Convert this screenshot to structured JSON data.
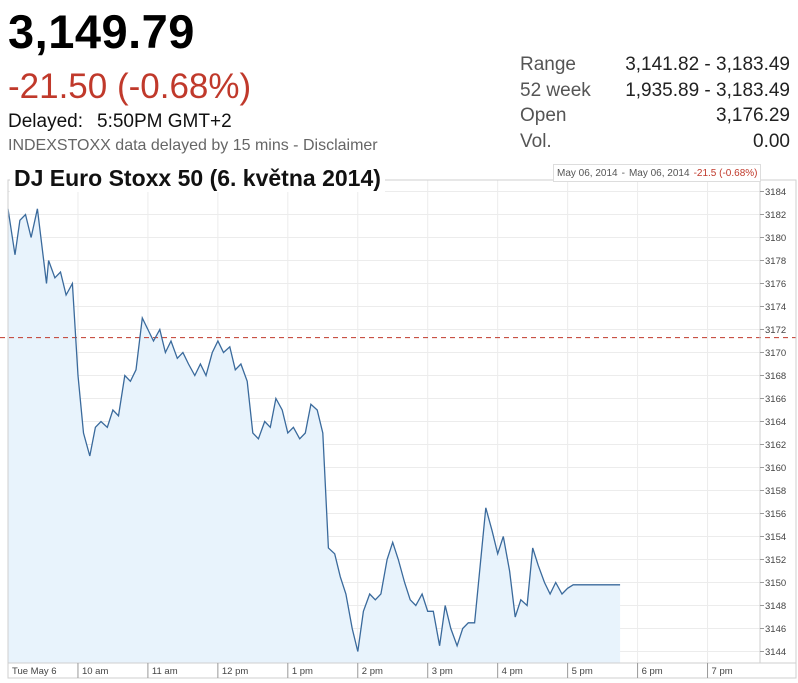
{
  "quote": {
    "price": "3,149.79",
    "change": "-21.50 (-0.68%)",
    "delayed_label": "Delayed:",
    "delayed_time": "5:50PM GMT+2",
    "disclaimer_prefix": "INDEXSTOXX data delayed by 15 mins - ",
    "disclaimer_link": "Disclaimer"
  },
  "stats": [
    {
      "label": "Range",
      "value": "3,141.82 - 3,183.49"
    },
    {
      "label": "52 week",
      "value": "1,935.89 - 3,183.49"
    },
    {
      "label": "Open",
      "value": "3,176.29"
    },
    {
      "label": "Vol.",
      "value": "0.00"
    }
  ],
  "range_box": {
    "from": "May 06, 2014",
    "separator": "-",
    "to": "May 06, 2014",
    "change": "-21.5 (-0.68%)"
  },
  "colors": {
    "line": "#3a6a9c",
    "fill": "#e8f3fc",
    "prev_close": "#c0392b",
    "negative": "#c0392b"
  },
  "chart_data": {
    "type": "area",
    "title": "DJ Euro Stoxx 50 (6. května 2014)",
    "xlabel": "",
    "ylabel": "",
    "x_ticks": [
      "Tue May 6",
      "10 am",
      "11 am",
      "12 pm",
      "1 pm",
      "2 pm",
      "3 pm",
      "4 pm",
      "5 pm",
      "6 pm",
      "7 pm"
    ],
    "y_ticks": [
      3144,
      3146,
      3148,
      3150,
      3152,
      3154,
      3156,
      3158,
      3160,
      3162,
      3164,
      3166,
      3168,
      3170,
      3172,
      3174,
      3176,
      3178,
      3180,
      3182,
      3184
    ],
    "ylim": [
      3143,
      3185
    ],
    "x_range_hours": [
      9,
      19.75
    ],
    "prev_close": 3171.29,
    "grid": true,
    "series": [
      {
        "x": [
          9.0,
          9.1,
          9.17,
          9.25,
          9.33,
          9.42,
          9.5,
          9.55,
          9.58,
          9.67,
          9.75,
          9.83,
          9.92,
          10.0,
          10.08,
          10.17,
          10.25,
          10.33,
          10.42,
          10.5,
          10.58,
          10.67,
          10.75,
          10.83,
          10.92,
          11.0,
          11.08,
          11.17,
          11.25,
          11.33,
          11.42,
          11.5,
          11.58,
          11.67,
          11.75,
          11.83,
          11.92,
          12.0,
          12.08,
          12.17,
          12.25,
          12.33,
          12.42,
          12.5,
          12.58,
          12.67,
          12.75,
          12.83,
          12.92,
          13.0,
          13.08,
          13.17,
          13.25,
          13.33,
          13.42,
          13.5,
          13.58,
          13.67,
          13.75,
          13.83,
          13.92,
          14.0,
          14.08,
          14.17,
          14.25,
          14.33,
          14.42,
          14.5,
          14.58,
          14.67,
          14.75,
          14.83,
          14.92,
          15.0,
          15.08,
          15.17,
          15.25,
          15.33,
          15.42,
          15.5,
          15.58,
          15.67,
          15.75,
          15.83,
          15.92,
          16.0,
          16.08,
          16.17,
          16.25,
          16.33,
          16.42,
          16.5,
          16.58,
          16.67,
          16.75,
          16.83,
          16.92,
          17.0,
          17.08,
          17.17,
          17.25,
          17.33,
          17.5,
          17.75
        ],
        "y": [
          3182.5,
          3178.5,
          3181.5,
          3182.0,
          3180.0,
          3182.5,
          3178.5,
          3176.0,
          3178.0,
          3176.5,
          3177.0,
          3175.0,
          3176.0,
          3168.0,
          3163.0,
          3161.0,
          3163.5,
          3164.0,
          3163.5,
          3165.0,
          3164.5,
          3168.0,
          3167.5,
          3168.5,
          3173.0,
          3172.0,
          3171.0,
          3172.0,
          3170.0,
          3171.0,
          3169.5,
          3170.0,
          3169.0,
          3168.0,
          3169.0,
          3168.0,
          3170.0,
          3171.0,
          3170.0,
          3170.5,
          3168.5,
          3169.0,
          3167.5,
          3163.0,
          3162.5,
          3164.0,
          3163.5,
          3166.0,
          3165.0,
          3163.0,
          3163.5,
          3162.5,
          3163.0,
          3165.5,
          3165.0,
          3163.0,
          3153.0,
          3152.5,
          3150.5,
          3149.0,
          3146.0,
          3144.0,
          3147.5,
          3149.0,
          3148.5,
          3149.0,
          3152.0,
          3153.5,
          3152.0,
          3150.0,
          3148.5,
          3148.0,
          3149.0,
          3147.5,
          3147.5,
          3144.5,
          3148.0,
          3146.0,
          3144.5,
          3146.0,
          3146.5,
          3146.5,
          3151.5,
          3156.5,
          3154.5,
          3152.5,
          3154.0,
          3151.0,
          3147.0,
          3148.5,
          3148.0,
          3153.0,
          3151.5,
          3150.0,
          3149.0,
          3150.0,
          3149.0,
          3149.5,
          3149.8,
          3149.8,
          3149.8,
          3149.8,
          3149.8,
          3149.8
        ]
      }
    ]
  }
}
